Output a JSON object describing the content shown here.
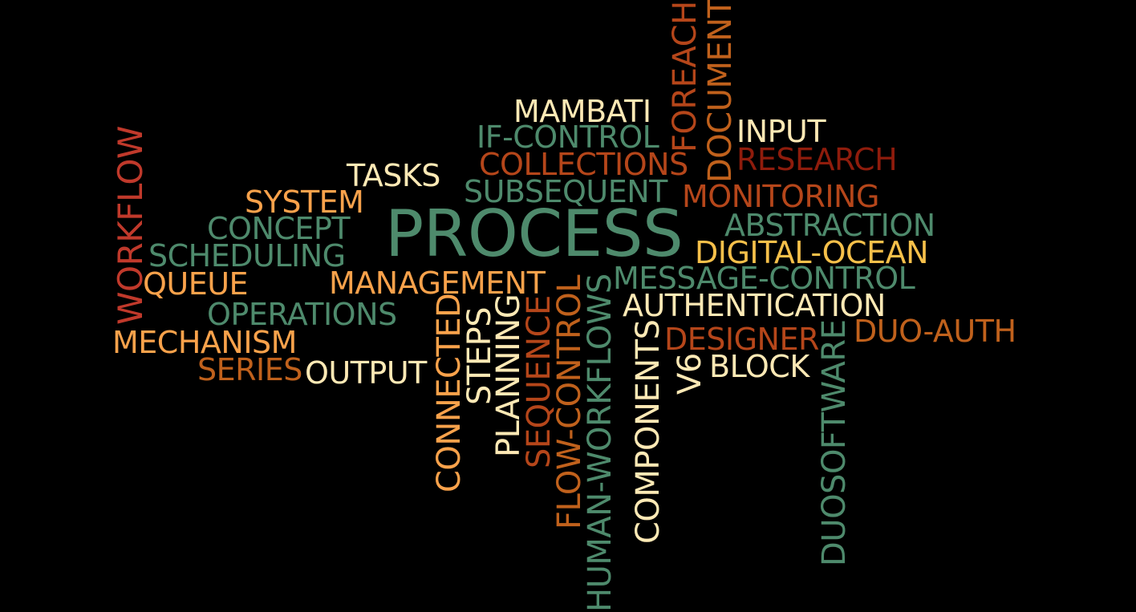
{
  "palette": {
    "teal": "#4e8a6c",
    "cream": "#fde9b5",
    "orange": "#f9a24b",
    "rust": "#b5461a",
    "brown": "#c0611c",
    "red": "#c0392b",
    "darkred": "#8f1c0c",
    "gold": "#f6c04a"
  },
  "words": [
    {
      "text": "PROCESS",
      "color": "teal"
    },
    {
      "text": "MAMBATI",
      "color": "cream"
    },
    {
      "text": "IF-CONTROL",
      "color": "teal"
    },
    {
      "text": "COLLECTIONS",
      "color": "rust"
    },
    {
      "text": "SUBSEQUENT",
      "color": "teal"
    },
    {
      "text": "TASKS",
      "color": "cream"
    },
    {
      "text": "SYSTEM",
      "color": "orange"
    },
    {
      "text": "CONCEPT",
      "color": "teal"
    },
    {
      "text": "SCHEDULING",
      "color": "teal"
    },
    {
      "text": "QUEUE",
      "color": "orange"
    },
    {
      "text": "MANAGEMENT",
      "color": "orange"
    },
    {
      "text": "OPERATIONS",
      "color": "teal"
    },
    {
      "text": "MECHANISM",
      "color": "orange"
    },
    {
      "text": "SERIES",
      "color": "brown"
    },
    {
      "text": "OUTPUT",
      "color": "cream"
    },
    {
      "text": "INPUT",
      "color": "cream"
    },
    {
      "text": "RESEARCH",
      "color": "darkred"
    },
    {
      "text": "MONITORING",
      "color": "rust"
    },
    {
      "text": "ABSTRACTION",
      "color": "teal"
    },
    {
      "text": "DIGITAL-OCEAN",
      "color": "gold"
    },
    {
      "text": "MESSAGE-CONTROL",
      "color": "teal"
    },
    {
      "text": "AUTHENTICATION",
      "color": "cream"
    },
    {
      "text": "DESIGNER",
      "color": "rust"
    },
    {
      "text": "DUO-AUTH",
      "color": "brown"
    },
    {
      "text": "BLOCK",
      "color": "cream"
    },
    {
      "text": "WORKFLOW",
      "color": "red"
    },
    {
      "text": "FOREACH",
      "color": "rust"
    },
    {
      "text": "DOCUMENT",
      "color": "brown"
    },
    {
      "text": "CONNECTED",
      "color": "orange"
    },
    {
      "text": "STEPS",
      "color": "cream"
    },
    {
      "text": "PLANNING",
      "color": "cream"
    },
    {
      "text": "SEQUENCE",
      "color": "rust"
    },
    {
      "text": "FLOW-CONTROL",
      "color": "brown"
    },
    {
      "text": "HUMAN-WORKFLOWS",
      "color": "teal"
    },
    {
      "text": "COMPONENTS",
      "color": "cream"
    },
    {
      "text": "V6",
      "color": "cream"
    },
    {
      "text": "DUOSOFTWARE",
      "color": "teal"
    }
  ]
}
